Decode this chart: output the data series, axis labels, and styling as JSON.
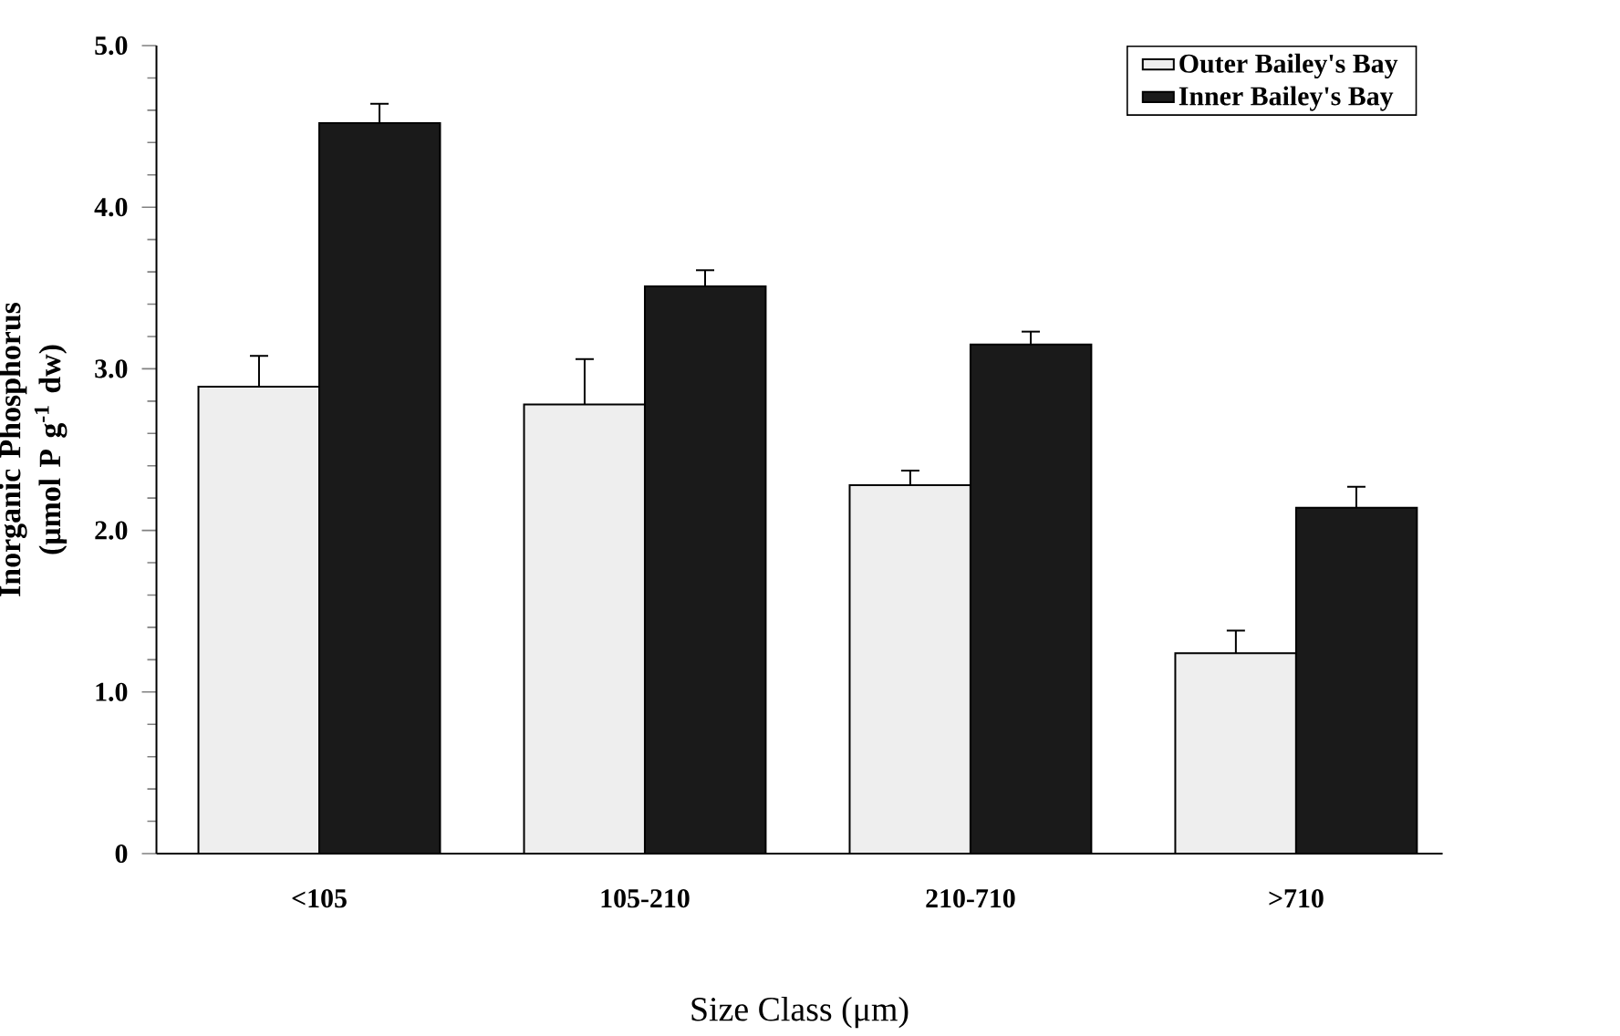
{
  "chart_data": {
    "type": "bar",
    "xlabel": "Size Class (μm)",
    "ylabel": "Inorganic Phosphorus (μmol P g$^{-1}$ dw)",
    "categories": [
      "<105",
      "105-210",
      "210-710",
      ">710"
    ],
    "series": [
      {
        "name": "Outer Bailey's Bay",
        "color": "#eeeeee",
        "values": [
          2.89,
          2.78,
          2.28,
          1.24
        ],
        "errors": [
          [
            2.89,
            3.08
          ],
          [
            2.78,
            3.06
          ],
          [
            2.28,
            2.37
          ],
          [
            1.24,
            1.38
          ]
        ]
      },
      {
        "name": "Inner Bailey's Bay",
        "color": "#1a1a1a",
        "values": [
          4.52,
          3.51,
          3.15,
          2.14
        ],
        "errors": [
          [
            4.52,
            4.64
          ],
          [
            3.51,
            3.61
          ],
          [
            3.15,
            3.23
          ],
          [
            2.14,
            2.27
          ]
        ]
      }
    ],
    "ylim": [
      0,
      5
    ],
    "yticks": [
      0,
      {
        "value": 1,
        "label": "1.0"
      },
      {
        "value": 2,
        "label": "2.0"
      },
      {
        "value": 3,
        "label": "3.0"
      },
      {
        "value": 4,
        "label": "4.0"
      },
      {
        "value": 5,
        "label": "5.0"
      }
    ],
    "legend": "top right",
    "grid": false
  }
}
